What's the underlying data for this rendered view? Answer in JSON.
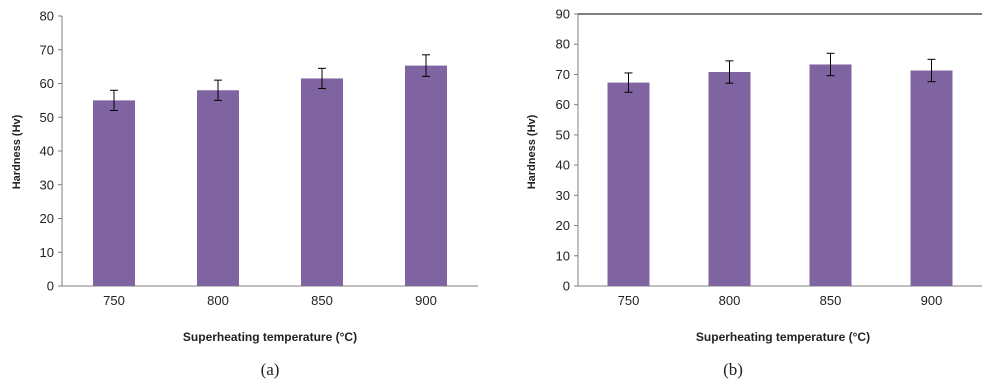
{
  "colors": {
    "bar": "#8064a2",
    "axis": "#7f7f7f",
    "error": "#000000"
  },
  "chart_data": [
    {
      "type": "bar",
      "panel_label": "(a)",
      "categories": [
        "750",
        "800",
        "850",
        "900"
      ],
      "values": [
        55,
        58,
        61.5,
        65.3
      ],
      "errors": [
        3,
        3,
        3,
        3.2
      ],
      "xlabel": "Superheating temperature (°C)",
      "ylabel": "Hardness (Hv)",
      "ylim": [
        0,
        80
      ],
      "yticks": [
        "0",
        "10",
        "20",
        "30",
        "40",
        "50",
        "60",
        "70",
        "80"
      ],
      "grid": false,
      "legend": "none"
    },
    {
      "type": "bar",
      "panel_label": "(b)",
      "categories": [
        "750",
        "800",
        "850",
        "900"
      ],
      "values": [
        67.3,
        70.8,
        73.3,
        71.3
      ],
      "errors": [
        3.2,
        3.7,
        3.7,
        3.7
      ],
      "xlabel": "Superheating temperature (°C)",
      "ylabel": "Hardness (Hv)",
      "ylim": [
        0,
        90
      ],
      "yticks": [
        "0",
        "10",
        "20",
        "30",
        "40",
        "50",
        "60",
        "70",
        "80",
        "90"
      ],
      "grid": false,
      "legend": "none"
    }
  ]
}
